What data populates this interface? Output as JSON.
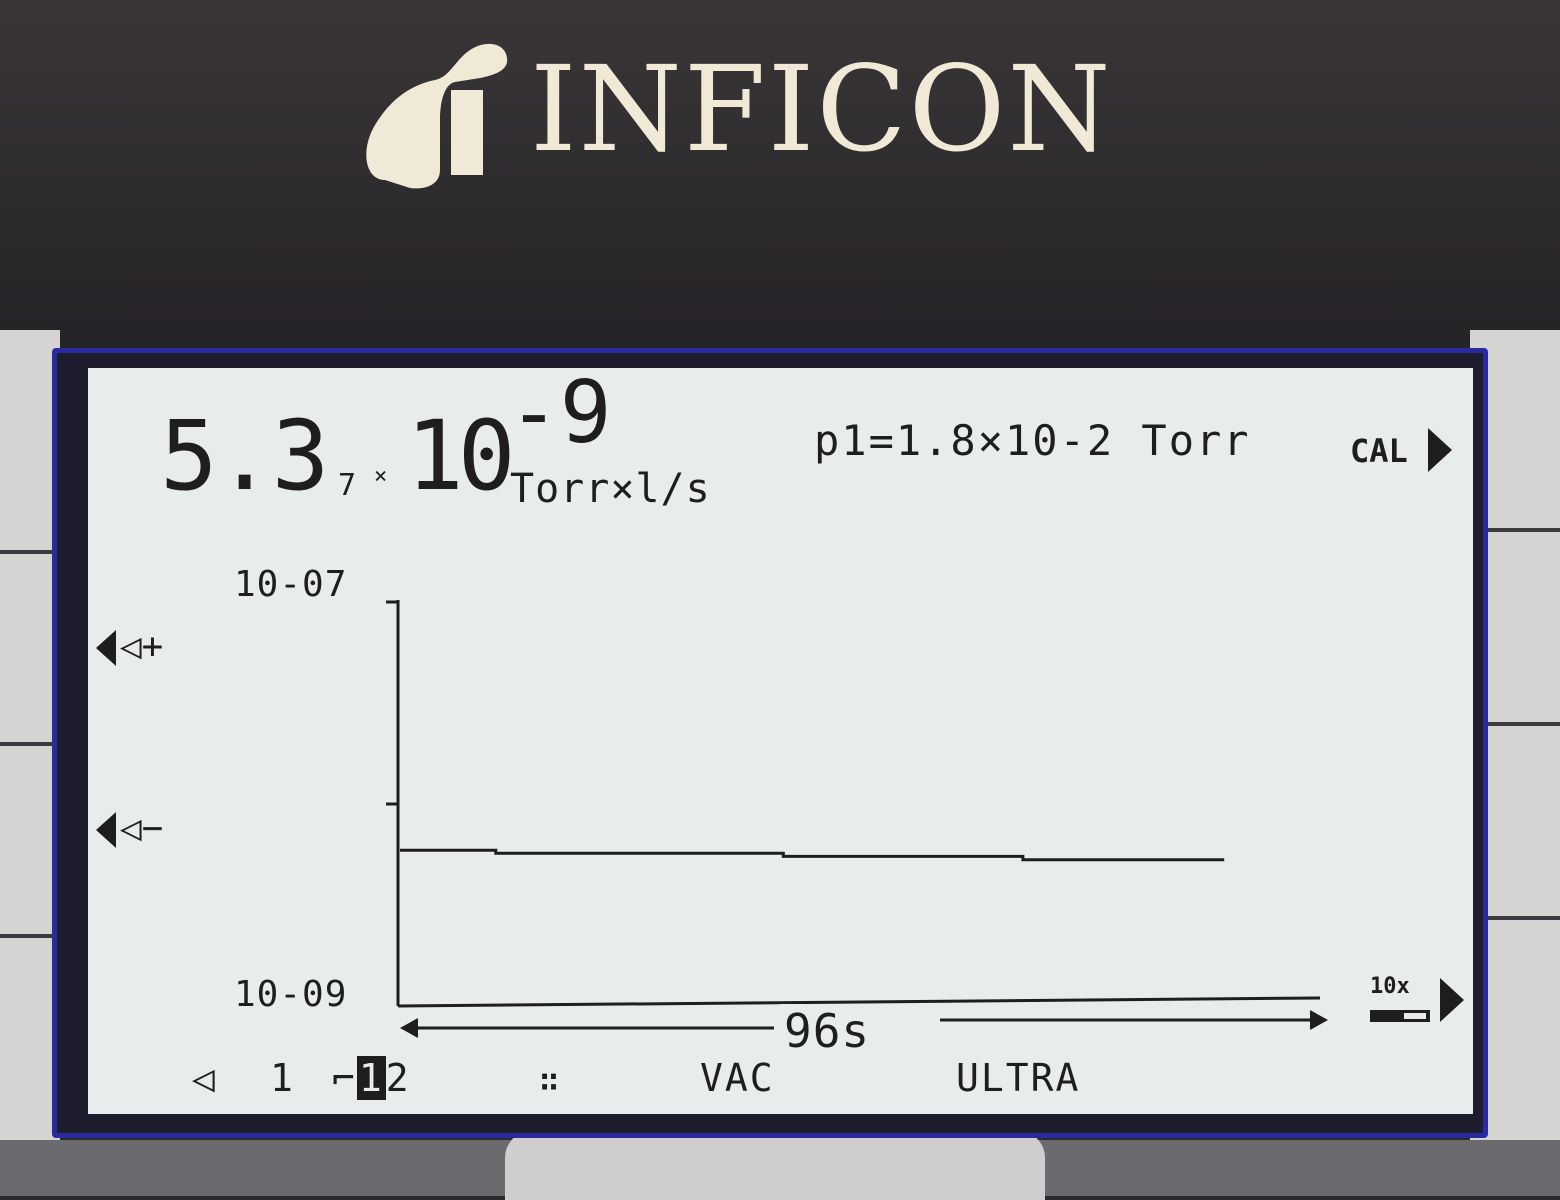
{
  "brand": {
    "logo_text": "INFICON",
    "logo_color": "#efe9d6"
  },
  "display": {
    "main_reading": {
      "mantissa": "5.3",
      "extra_digit": "7",
      "times": "×",
      "base": "10",
      "exponent": "-9",
      "unit": "Torr×l/s"
    },
    "pressure": "p1=1.8×10-2 Torr",
    "cal_button": "CAL",
    "y_axis_top": "10-07",
    "y_axis_bottom": "10-09",
    "trigger_plus": "◁+",
    "trigger_minus": "◁−",
    "time_span": "96s",
    "scale_button": "10x",
    "status": {
      "speaker": "◁",
      "volume": "1",
      "channel_prefix": "⌐",
      "channel_selected": "1",
      "channel_other": "2",
      "mode_icon": "∷",
      "vac": "VAC",
      "ultra": "ULTRA"
    }
  },
  "chart_data": {
    "type": "line",
    "log_scale": true,
    "ylim": [
      1e-09,
      1e-07
    ],
    "xlim": [
      0,
      96
    ],
    "x_unit": "s",
    "grid": false,
    "series": [
      {
        "x": [
          0,
          10,
          10,
          40,
          40,
          65,
          65,
          86
        ],
        "values": [
          5.9e-09,
          5.9e-09,
          5.7e-09,
          5.7e-09,
          5.5e-09,
          5.5e-09,
          5.3e-09,
          5.3e-09
        ]
      }
    ]
  }
}
